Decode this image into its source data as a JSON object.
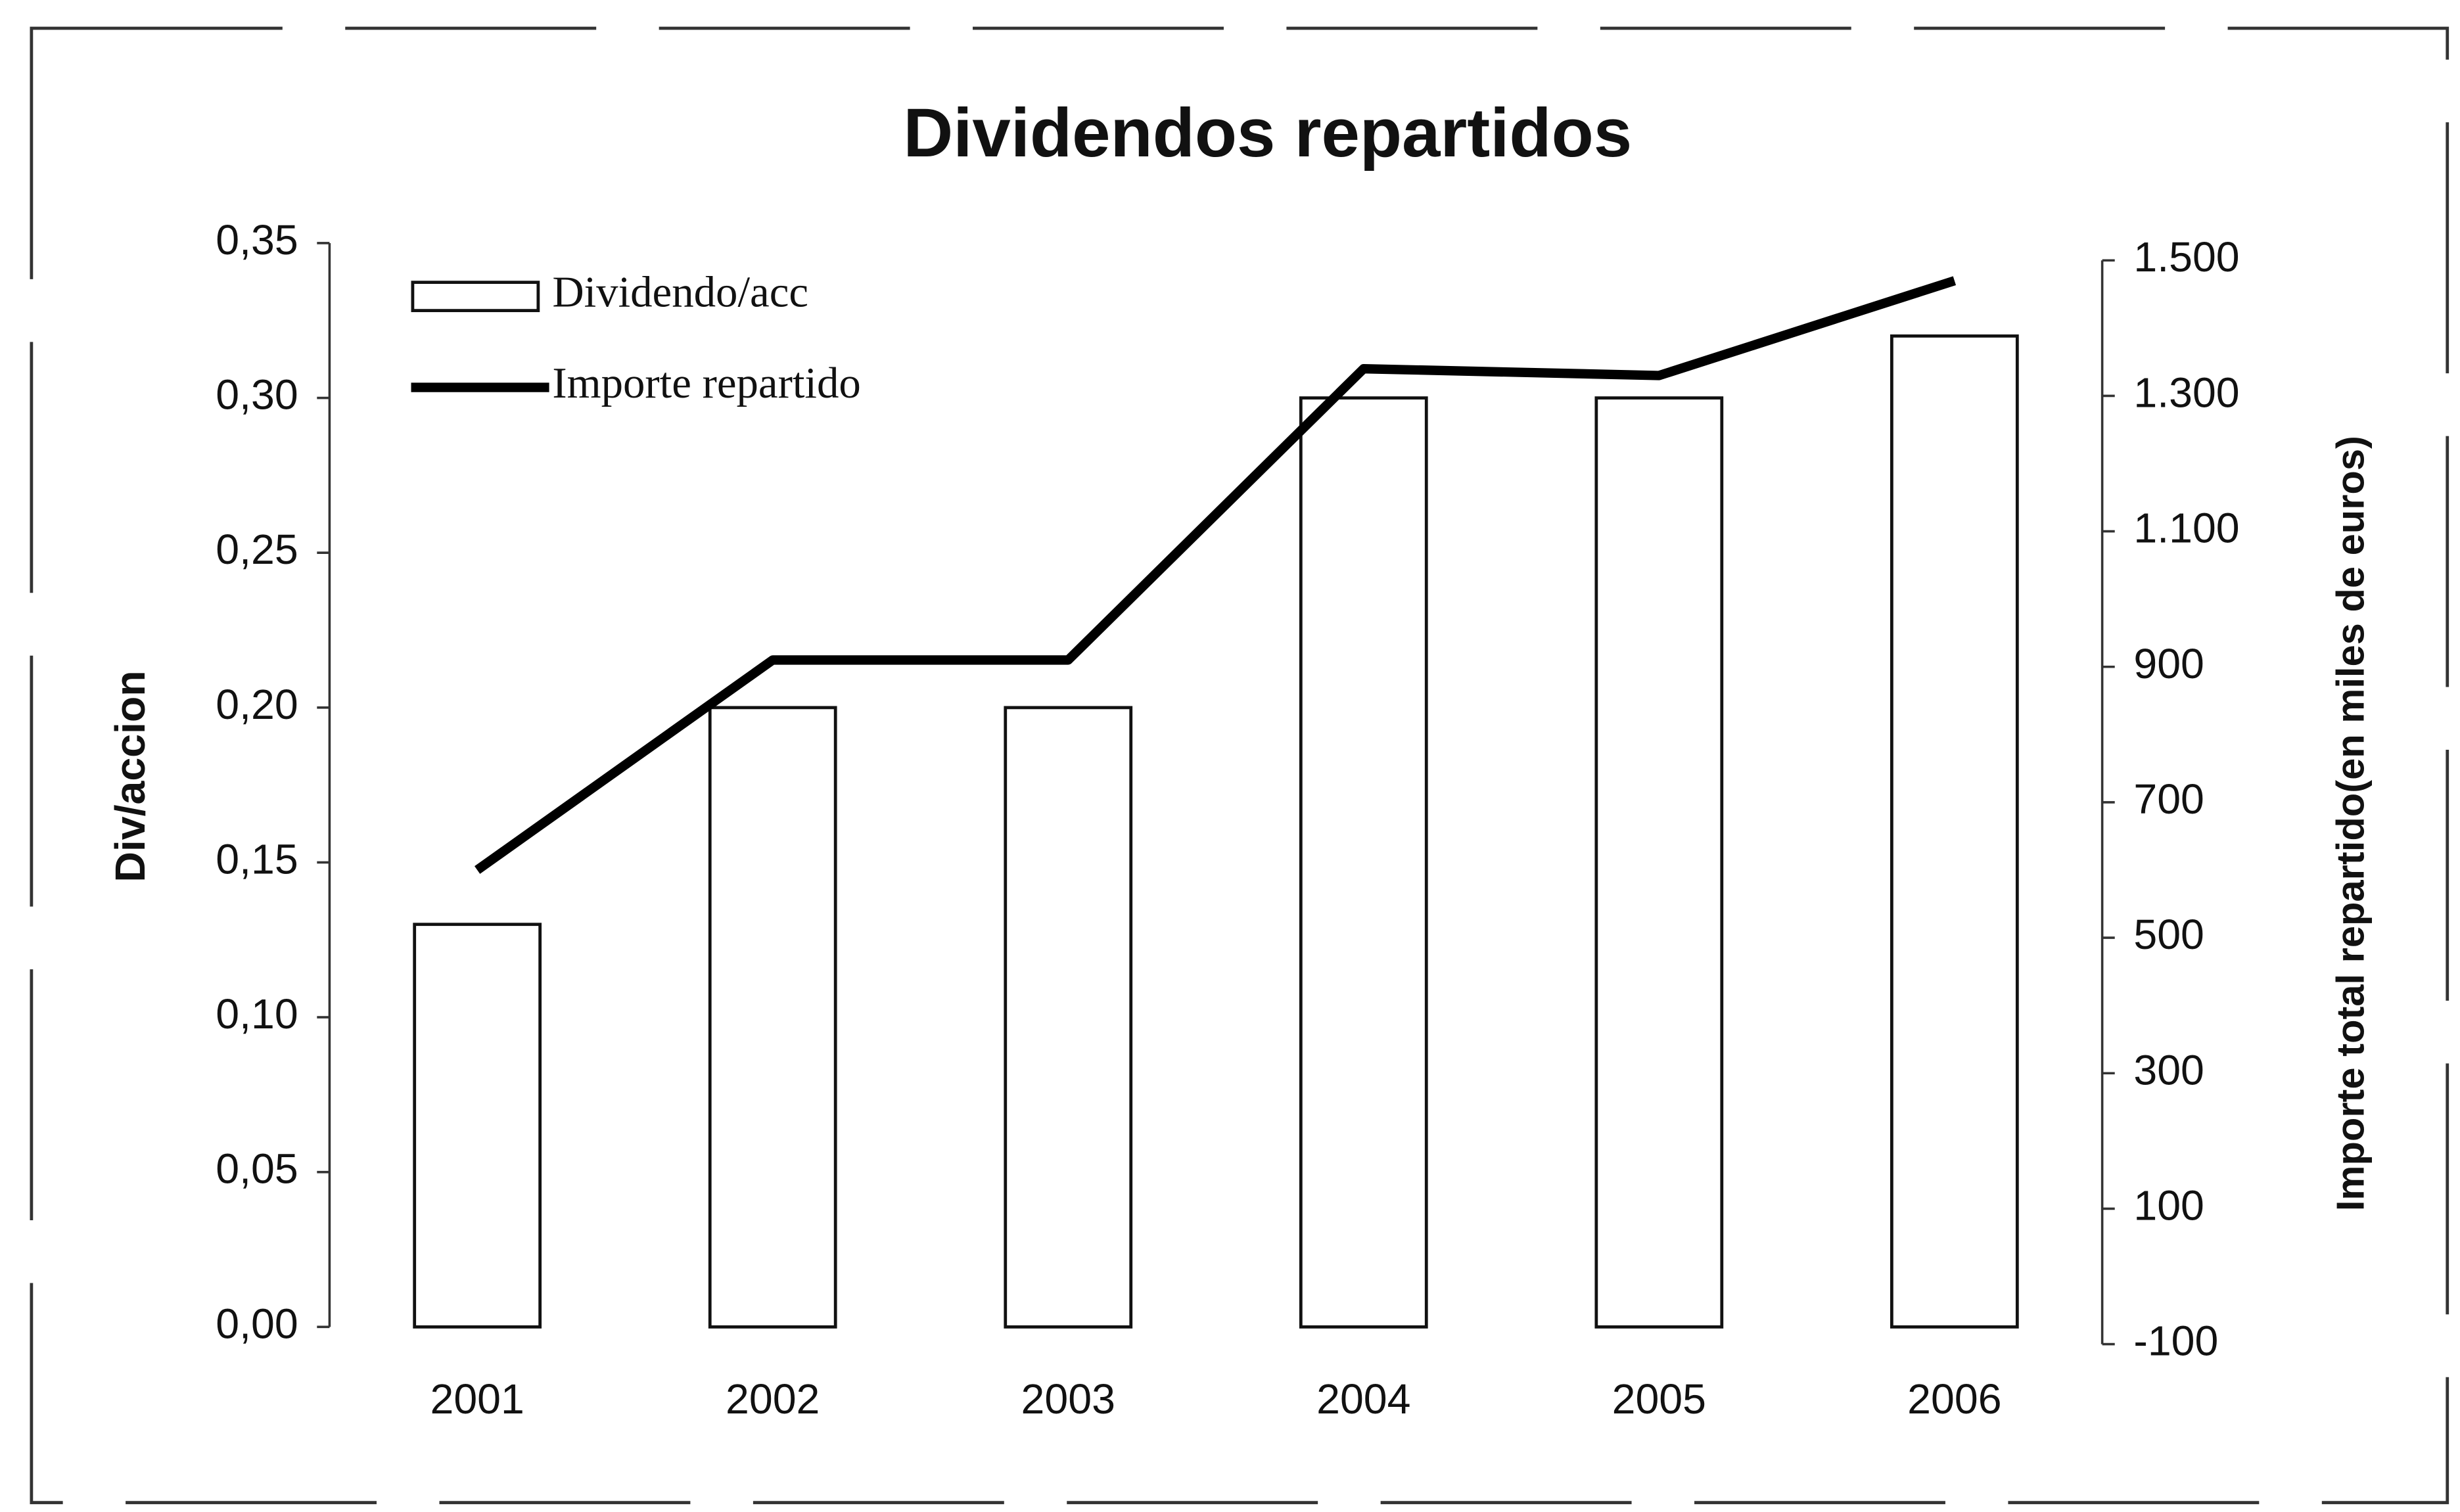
{
  "chart_data": {
    "type": "bar_line",
    "title": "Dividendos repartidos",
    "ylabel": "Div/accion",
    "y2label": "Importe total repartido(en miles de euros)",
    "categories": [
      "2001",
      "2002",
      "2003",
      "2004",
      "2005",
      "2006"
    ],
    "series": [
      {
        "name": "Dividendo/acc",
        "type": "bar",
        "color": "#ffffff",
        "values": [
          0.13,
          0.2,
          0.2,
          0.3,
          0.3,
          0.32
        ]
      },
      {
        "name": "Importe repartido",
        "type": "line",
        "axis": "y2",
        "color": "#000000",
        "values": [
          600,
          910,
          910,
          1340,
          1330,
          1470
        ]
      }
    ],
    "ylim": [
      0,
      0.35
    ],
    "yticks": [
      {
        "value": 0,
        "label": "0,00"
      },
      {
        "value": 0.05,
        "label": "0,05"
      },
      {
        "value": 0.1,
        "label": "0,10"
      },
      {
        "value": 0.15,
        "label": "0,15"
      },
      {
        "value": 0.2,
        "label": "0,20"
      },
      {
        "value": 0.25,
        "label": "0,25"
      },
      {
        "value": 0.3,
        "label": "0,30"
      },
      {
        "value": 0.35,
        "label": "0,35"
      }
    ],
    "y2lim": [
      -100,
      1500
    ],
    "y2ticks": [
      -100,
      100,
      300,
      500,
      700,
      900,
      {
        "value": 1100,
        "label": "1.100"
      },
      {
        "value": 1300,
        "label": "1.300"
      },
      {
        "value": 1500,
        "label": "1.500"
      }
    ],
    "grid": false,
    "legend": "upper left"
  }
}
